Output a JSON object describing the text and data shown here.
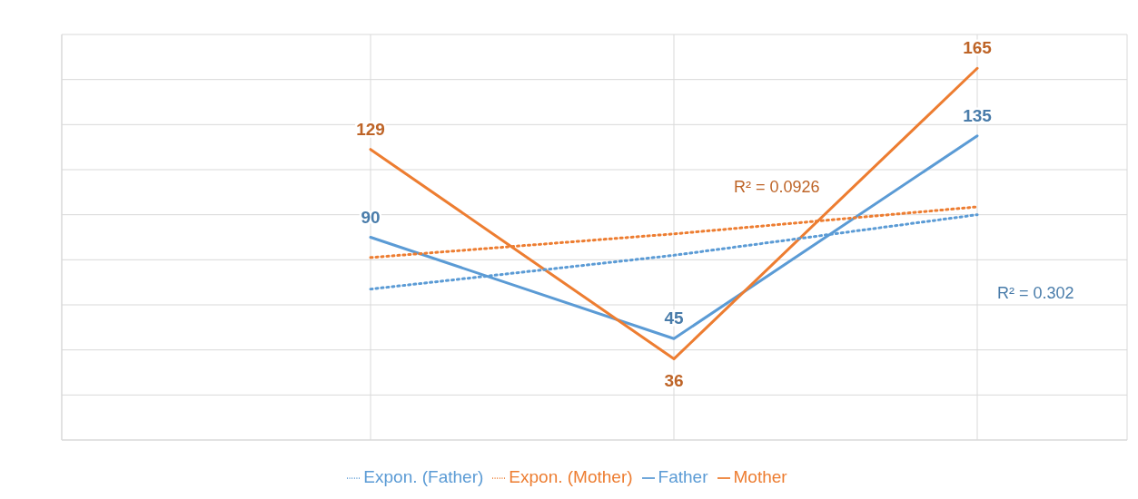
{
  "chart_data": {
    "type": "line",
    "categories": [
      null,
      null,
      null
    ],
    "ylim": [
      0,
      180
    ],
    "yticks": [
      {
        "value": 0,
        "label": null
      },
      {
        "value": 20,
        "label": null
      },
      {
        "value": 40,
        "label": null
      },
      {
        "value": 60,
        "label": null
      },
      {
        "value": 80,
        "label": null
      },
      {
        "value": 100,
        "label": null
      },
      {
        "value": 120,
        "label": null
      },
      {
        "value": 140,
        "label": null
      },
      {
        "value": 160,
        "label": null
      },
      {
        "value": 180,
        "label": null
      }
    ],
    "grid": true,
    "legend": "bottom",
    "marker": "none",
    "series": [
      {
        "name": "Father",
        "color": "#5b9bd5",
        "values": [
          90,
          45,
          135
        ],
        "value_labels": [
          "90",
          "45",
          "135"
        ],
        "line_style": "solid"
      },
      {
        "name": "Mother",
        "color": "#ed7d31",
        "values": [
          129,
          36,
          165
        ],
        "value_labels": [
          "129",
          "36",
          "165"
        ],
        "line_style": "solid"
      },
      {
        "name": "Expon. (Father)",
        "color": "#5b9bd5",
        "values": [
          67,
          82,
          100
        ],
        "line_style": "dotted"
      },
      {
        "name": "Expon. (Mother)",
        "color": "#ed7d31",
        "values": [
          81,
          91.5,
          103.5
        ],
        "line_style": "dotted"
      }
    ],
    "annotations": [
      "R² = 0.302",
      "R² = 0.0926"
    ]
  }
}
